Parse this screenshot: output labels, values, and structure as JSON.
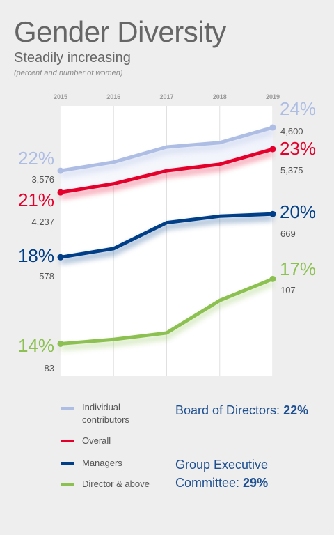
{
  "header": {
    "title": "Gender Diversity",
    "subtitle": "Steadily increasing",
    "note": "(percent and number of women)"
  },
  "colors": {
    "individual": "#aebde3",
    "overall": "#e4002b",
    "managers": "#003f87",
    "director": "#8cc152",
    "grid": "#e0e0e0",
    "plot_bg": "#ffffff"
  },
  "chart_data": {
    "type": "line",
    "x": [
      "2015",
      "2016",
      "2017",
      "2018",
      "2019"
    ],
    "ylim": [
      12.5,
      25
    ],
    "grid": "vertical",
    "series": [
      {
        "name": "Individual contributors",
        "color": "#aebde3",
        "values": [
          22.0,
          22.4,
          23.1,
          23.3,
          24.0
        ],
        "start_label": "22%",
        "start_count": "3,576",
        "end_label": "24%",
        "end_count": "4,600"
      },
      {
        "name": "Overall",
        "color": "#e4002b",
        "values": [
          21.0,
          21.4,
          22.0,
          22.3,
          23.0
        ],
        "start_label": "21%",
        "start_count": "4,237",
        "end_label": "23%",
        "end_count": "5,375"
      },
      {
        "name": "Managers",
        "color": "#003f87",
        "values": [
          18.0,
          18.4,
          19.6,
          19.9,
          20.0
        ],
        "start_label": "18%",
        "start_count": "578",
        "end_label": "20%",
        "end_count": "669"
      },
      {
        "name": "Director & above",
        "color": "#8cc152",
        "values": [
          14.0,
          14.2,
          14.5,
          16.0,
          17.0
        ],
        "start_label": "14%",
        "start_count": "83",
        "end_label": "17%",
        "end_count": "107"
      }
    ]
  },
  "legend": {
    "items": [
      {
        "label": "Individual contributors",
        "color": "#aebde3"
      },
      {
        "label": "Overall",
        "color": "#e4002b"
      },
      {
        "label": "Managers",
        "color": "#003f87"
      },
      {
        "label": "Director & above",
        "color": "#8cc152"
      }
    ]
  },
  "stats": {
    "board_label": "Board of Directors:",
    "board_value": "22%",
    "gec_label": "Group Executive Committee:",
    "gec_value": "29%"
  }
}
